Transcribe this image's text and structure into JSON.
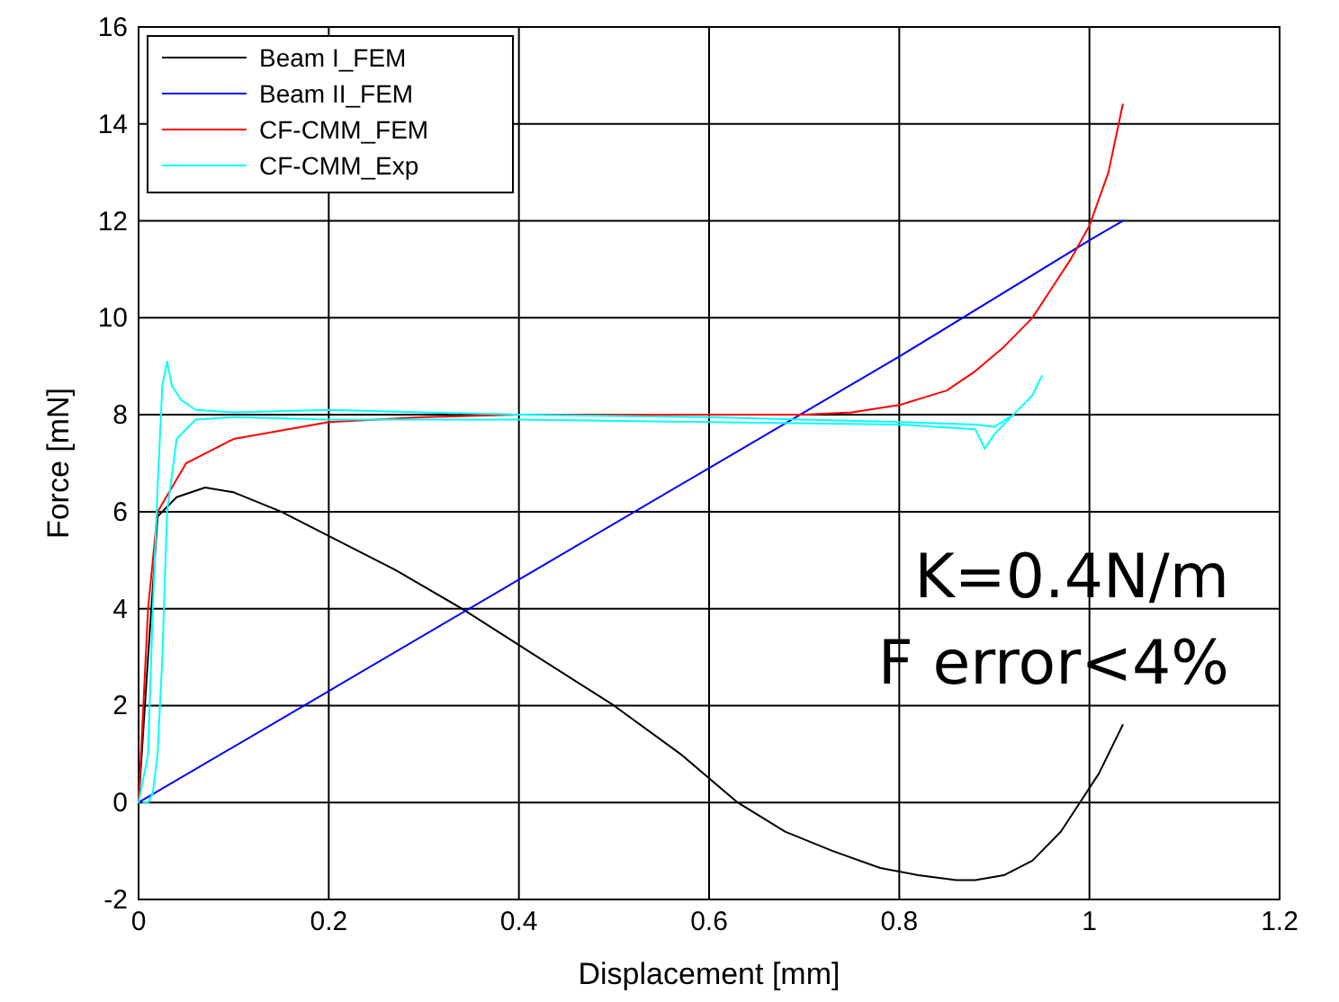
{
  "chart_data": {
    "type": "line",
    "xlabel": "Displacement [mm]",
    "ylabel": "Force [mN]",
    "xlim": [
      0,
      1.2
    ],
    "ylim": [
      -2,
      16
    ],
    "xticks": [
      0,
      0.2,
      0.4,
      0.6,
      0.8,
      1,
      1.2
    ],
    "yticks": [
      -2,
      0,
      2,
      4,
      6,
      8,
      10,
      12,
      14,
      16
    ],
    "grid": true,
    "legend": "top left",
    "marker": "none",
    "line_style": "solid",
    "annotations": [
      "K=0.4N/m",
      "F error<4%"
    ],
    "series": [
      {
        "name": "Beam I_FEM",
        "color": "#000000",
        "x": [
          0,
          0.01,
          0.02,
          0.04,
          0.07,
          0.1,
          0.15,
          0.2,
          0.27,
          0.34,
          0.42,
          0.5,
          0.57,
          0.63,
          0.68,
          0.73,
          0.78,
          0.82,
          0.86,
          0.88,
          0.91,
          0.94,
          0.97,
          0.99,
          1.01,
          1.035
        ],
        "values": [
          0,
          3,
          5.9,
          6.3,
          6.5,
          6.4,
          6,
          5.5,
          4.8,
          4,
          3,
          2,
          1,
          0,
          -0.6,
          -1,
          -1.35,
          -1.5,
          -1.6,
          -1.6,
          -1.5,
          -1.2,
          -0.6,
          0,
          0.6,
          1.6
        ]
      },
      {
        "name": "Beam II_FEM",
        "color": "#0000ff",
        "x": [
          0,
          0.2,
          0.4,
          0.6,
          0.8,
          1,
          1.035
        ],
        "values": [
          0,
          2.3,
          4.6,
          6.9,
          9.2,
          11.6,
          12
        ]
      },
      {
        "name": "CF-CMM_FEM",
        "color": "#ff0000",
        "x": [
          0,
          0.005,
          0.01,
          0.02,
          0.05,
          0.1,
          0.2,
          0.3,
          0.4,
          0.55,
          0.7,
          0.75,
          0.8,
          0.85,
          0.88,
          0.91,
          0.94,
          0.96,
          0.98,
          1,
          1.02,
          1.035
        ],
        "values": [
          0,
          2,
          4,
          6,
          7,
          7.5,
          7.85,
          7.95,
          8,
          8,
          8,
          8.05,
          8.2,
          8.5,
          8.9,
          9.4,
          10,
          10.6,
          11.2,
          11.9,
          13,
          14.4
        ]
      },
      {
        "name": "CF-CMM_Exp",
        "color": "#00ffff",
        "x": [
          0,
          0.01,
          0.015,
          0.02,
          0.025,
          0.03,
          0.035,
          0.045,
          0.06,
          0.1,
          0.2,
          0.4,
          0.6,
          0.8,
          0.88,
          0.9,
          0.92,
          0.94,
          0.95,
          0.94,
          0.92,
          0.9,
          0.89,
          0.88,
          0.8,
          0.6,
          0.4,
          0.2,
          0.1,
          0.06,
          0.04,
          0.03,
          0.025,
          0.02,
          0.015,
          0.01,
          0.005
        ],
        "values": [
          0,
          1,
          4,
          6.5,
          8.6,
          9.1,
          8.6,
          8.3,
          8.1,
          8.05,
          8.1,
          8,
          7.95,
          7.85,
          7.8,
          7.75,
          8,
          8.4,
          8.8,
          8.4,
          8,
          7.6,
          7.3,
          7.7,
          7.8,
          7.85,
          7.9,
          7.9,
          7.95,
          7.9,
          7.5,
          6,
          3,
          1,
          0.2,
          0,
          0
        ]
      }
    ]
  }
}
